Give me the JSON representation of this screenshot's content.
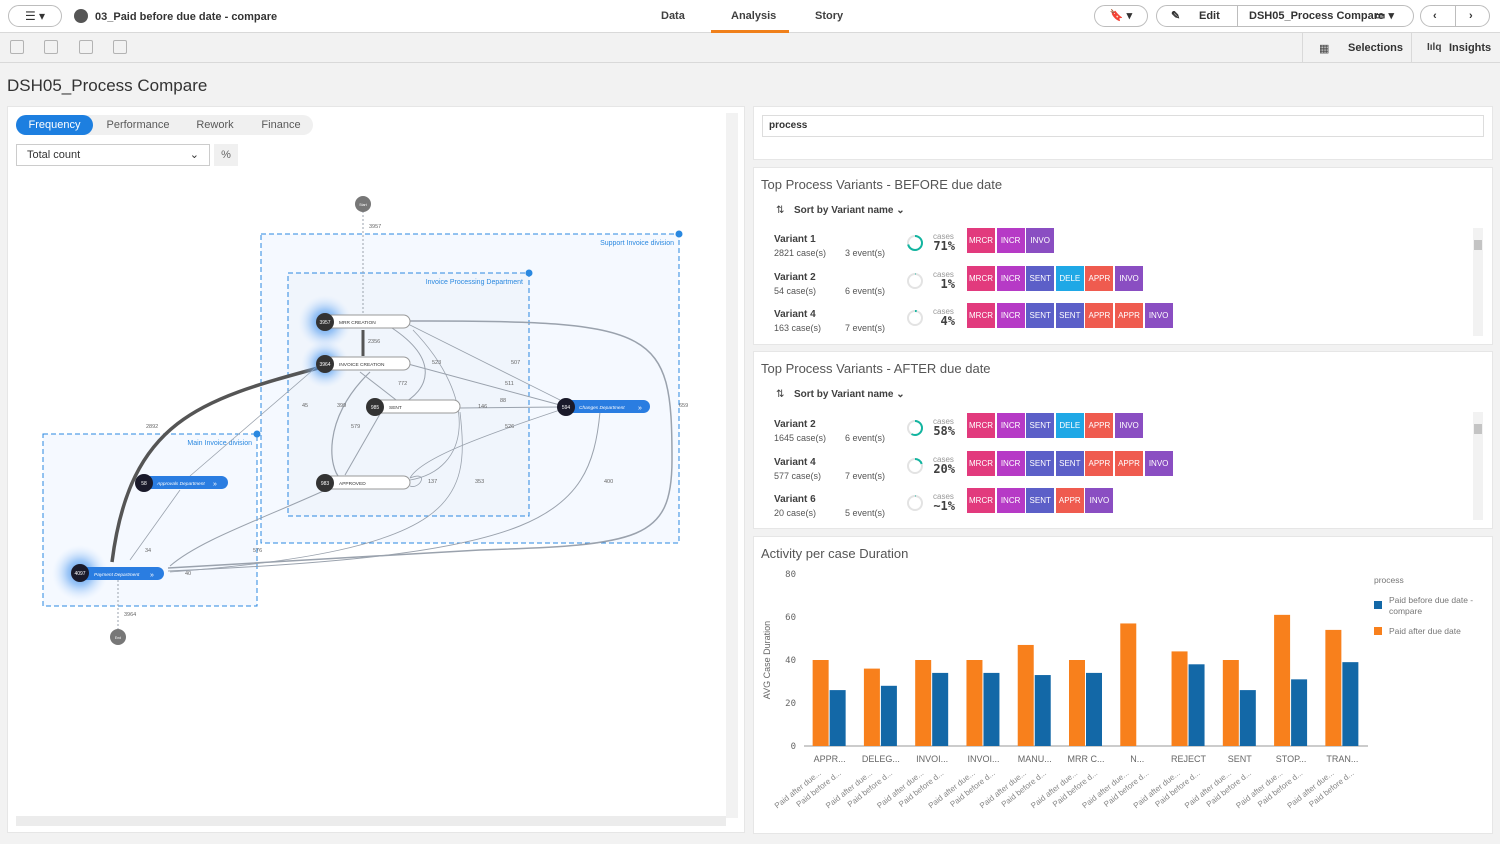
{
  "topbar": {
    "menu_label": "☰ ▾",
    "app_title": "03_Paid before due date - compare",
    "tabs": [
      "Data",
      "Analysis",
      "Story"
    ],
    "edit_label": "Edit",
    "sheet_name": "DSH05_Process Compare"
  },
  "toolbar": {
    "selections_label": "Selections",
    "insights_label": "Insights"
  },
  "sheet_title": "DSH05_Process Compare",
  "process_map": {
    "modes": [
      "Frequency",
      "Performance",
      "Rework",
      "Finance"
    ],
    "active_mode": "Frequency",
    "measure": "Total count",
    "percent_label": "%",
    "groups": [
      "Support Invoice division",
      "Invoice Processing Department",
      "Main Invoice division"
    ],
    "nodes": [
      {
        "count": "3957",
        "label": "MRR CREATION"
      },
      {
        "count": "3964",
        "label": "INVOICE CREATION"
      },
      {
        "count": "985",
        "label": "SENT"
      },
      {
        "count": "594",
        "label": "Changes Department"
      },
      {
        "count": "983",
        "label": "APPROVED"
      },
      {
        "count": "58",
        "label": "Approvals Department"
      },
      {
        "count": "4097",
        "label": "Payment Department"
      }
    ],
    "start_label": "Start",
    "end_label": "End",
    "edge_labels": [
      "3957",
      "2356",
      "523",
      "507",
      "772",
      "511",
      "45",
      "399",
      "88",
      "146",
      "579",
      "526",
      "2892",
      "137",
      "353",
      "400",
      "659",
      "34",
      "40",
      "3964",
      "576"
    ]
  },
  "search": {
    "value": "process"
  },
  "variants_before": {
    "title": "Top Process Variants - BEFORE due date",
    "sort_label": "Sort by Variant name",
    "cases_word": "cases",
    "rows": [
      {
        "name": "Variant 1",
        "cases": "2821 case(s)",
        "events": "3 event(s)",
        "pct": "71%",
        "fill": 0.71,
        "chips": [
          "MRCR",
          "INCR",
          "INVO"
        ]
      },
      {
        "name": "Variant 2",
        "cases": "54 case(s)",
        "events": "6 event(s)",
        "pct": "1%",
        "fill": 0.01,
        "chips": [
          "MRCR",
          "INCR",
          "SENT",
          "DELE",
          "APPR",
          "INVO"
        ]
      },
      {
        "name": "Variant 4",
        "cases": "163 case(s)",
        "events": "7 event(s)",
        "pct": "4%",
        "fill": 0.04,
        "chips": [
          "MRCR",
          "INCR",
          "SENT",
          "SENT",
          "APPR",
          "APPR",
          "INVO"
        ]
      }
    ]
  },
  "variants_after": {
    "title": "Top Process Variants - AFTER due date",
    "sort_label": "Sort by Variant name",
    "cases_word": "cases",
    "rows": [
      {
        "name": "Variant 2",
        "cases": "1645 case(s)",
        "events": "6 event(s)",
        "pct": "58%",
        "fill": 0.58,
        "chips": [
          "MRCR",
          "INCR",
          "SENT",
          "DELE",
          "APPR",
          "INVO"
        ]
      },
      {
        "name": "Variant 4",
        "cases": "577 case(s)",
        "events": "7 event(s)",
        "pct": "20%",
        "fill": 0.2,
        "chips": [
          "MRCR",
          "INCR",
          "SENT",
          "SENT",
          "APPR",
          "APPR",
          "INVO"
        ]
      },
      {
        "name": "Variant 6",
        "cases": "20 case(s)",
        "events": "5 event(s)",
        "pct": "~1%",
        "fill": 0.01,
        "chips": [
          "MRCR",
          "INCR",
          "SENT",
          "APPR",
          "INVO"
        ]
      }
    ]
  },
  "chip_colors": {
    "MRCR": "#e23a7d",
    "INCR": "#b63ac6",
    "INVO": "#8a4ec2",
    "SENT": "#5c5fc8",
    "DELE": "#1fa8e6",
    "APPR": "#ef5b4f"
  },
  "chart_data": {
    "type": "bar",
    "title": "Activity per case Duration",
    "ylabel": "AVG Case Duration",
    "xlabel": "",
    "ylim": [
      0,
      80
    ],
    "yticks": [
      0,
      20,
      40,
      60,
      80
    ],
    "categories": [
      "APPR...",
      "DELEG...",
      "INVOI...",
      "INVOI...",
      "MANU...",
      "MRR C...",
      "N...",
      "REJECT",
      "SENT",
      "STOP...",
      "TRAN..."
    ],
    "rotated_labels": [
      "Paid after due...",
      "Paid before d..."
    ],
    "legend_title": "process",
    "legend_position": "right",
    "series": [
      {
        "name": "Paid after due date",
        "color": "#f8801c",
        "values": [
          40,
          36,
          40,
          40,
          47,
          40,
          57,
          44,
          40,
          61,
          54
        ]
      },
      {
        "name": "Paid before due date - compare",
        "color": "#1368a7",
        "values": [
          26,
          28,
          34,
          34,
          33,
          34,
          null,
          38,
          26,
          31,
          39
        ]
      }
    ]
  }
}
